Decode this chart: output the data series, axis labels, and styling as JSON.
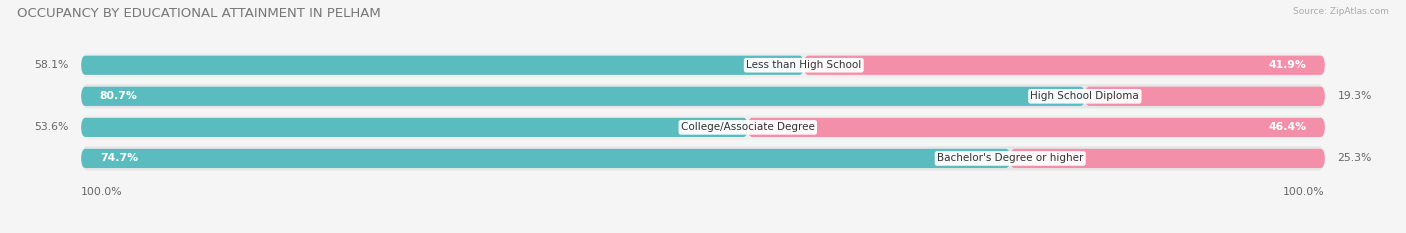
{
  "title": "OCCUPANCY BY EDUCATIONAL ATTAINMENT IN PELHAM",
  "source": "Source: ZipAtlas.com",
  "categories": [
    "Less than High School",
    "High School Diploma",
    "College/Associate Degree",
    "Bachelor's Degree or higher"
  ],
  "owner_pct": [
    58.1,
    80.7,
    53.6,
    74.7
  ],
  "renter_pct": [
    41.9,
    19.3,
    46.4,
    25.3
  ],
  "owner_color": "#5bbcbf",
  "renter_color": "#f48faa",
  "row_colors": [
    "#f0f0f0",
    "#e8e8e8",
    "#f0f0f0",
    "#e8e8e8"
  ],
  "bg_color": "#f5f5f5",
  "title_fontsize": 9.5,
  "label_fontsize": 7.8,
  "bar_height": 0.62,
  "figsize": [
    14.06,
    2.33
  ],
  "dpi": 100
}
